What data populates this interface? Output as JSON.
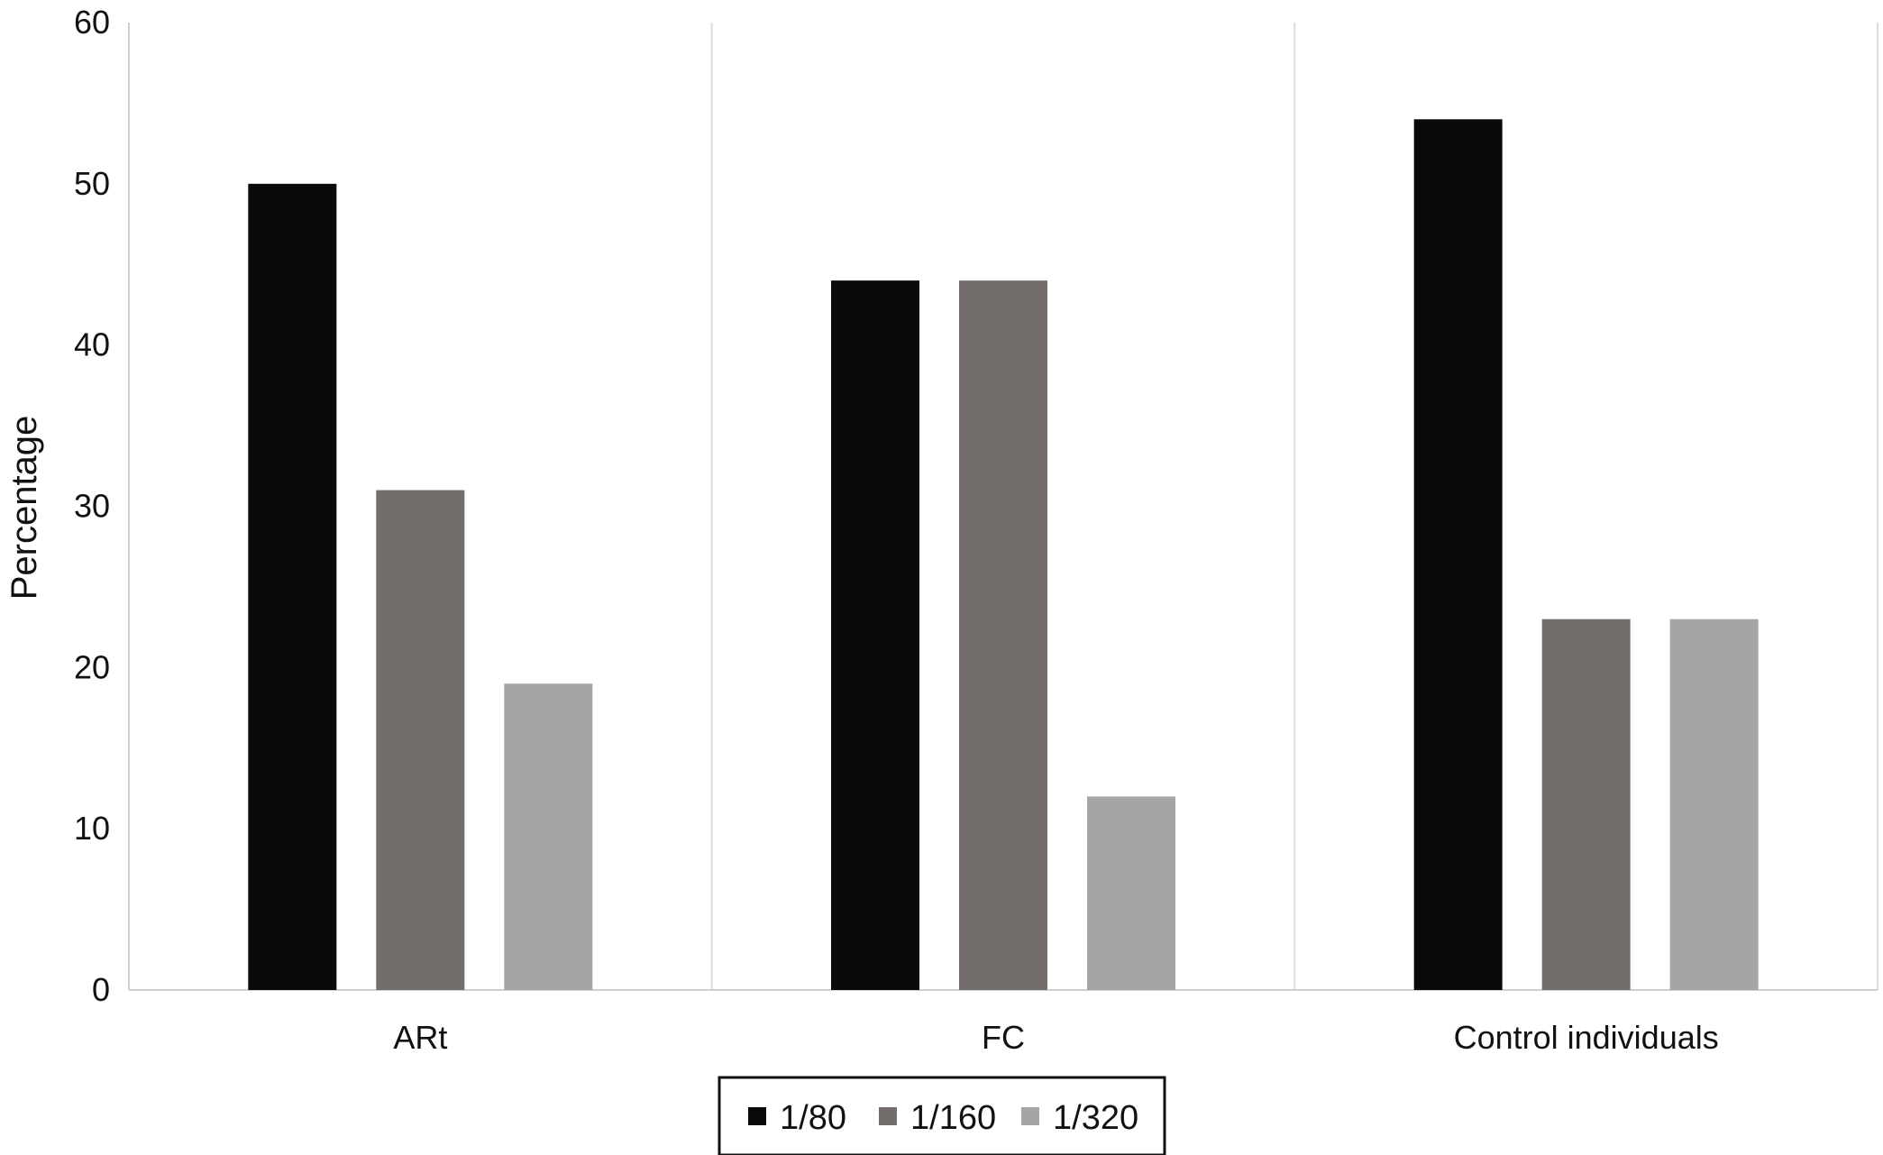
{
  "chart_data": {
    "type": "bar",
    "title": "",
    "xlabel": "",
    "ylabel": "Percentage",
    "ylim": [
      0,
      60
    ],
    "yticks": [
      0,
      10,
      20,
      30,
      40,
      50,
      60
    ],
    "categories": [
      "ARt",
      "FC",
      "Control individuals"
    ],
    "series": [
      {
        "name": "1/80",
        "color": "#0a0a0a",
        "values": [
          50,
          44,
          54
        ]
      },
      {
        "name": "1/160",
        "color": "#736e6c",
        "values": [
          31,
          44,
          23
        ]
      },
      {
        "name": "1/320",
        "color": "#a5a5a5",
        "values": [
          19,
          12,
          23
        ]
      }
    ],
    "grid": "vertical separators between categories",
    "legend": "bottom-center, boxed"
  }
}
